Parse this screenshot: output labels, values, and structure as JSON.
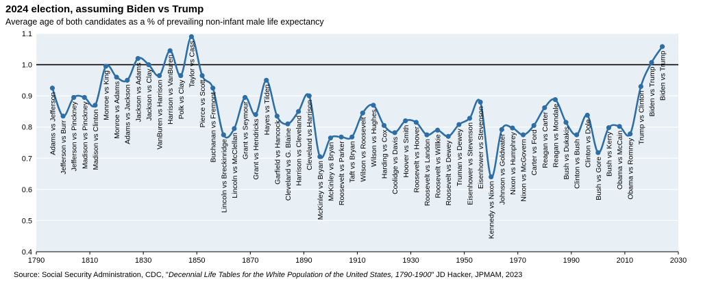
{
  "title": "2024 election, assuming Biden vs Trump",
  "subtitle": "Average age of both candidates as a % of prevailing non-infant male life expectancy",
  "source": {
    "prefix": "Source: Social Security Administration, CDC, \"",
    "italic": "Decennial Life Tables for the White Population of the United States, 1790-1900",
    "suffix": "\" JD Hacker, JPMAM, 2023"
  },
  "colors": {
    "line": "#2e6ea6",
    "marker": "#2e6ea6",
    "plot_bg": "#e8f0f6",
    "gridline": "#ffffff",
    "reference_line": "#000000"
  },
  "chart_data": {
    "type": "line",
    "x_ticks": [
      1790,
      1810,
      1830,
      1850,
      1870,
      1890,
      1910,
      1930,
      1950,
      1970,
      1990,
      2010,
      2030
    ],
    "y_ticks": [
      0.4,
      0.5,
      0.6,
      0.7,
      0.8,
      0.9,
      1.0,
      1.1
    ],
    "y_tick_labels": [
      "0.4",
      "0.5",
      "0.6",
      "0.7",
      "0.8",
      "0.9",
      "1.0",
      "1.1"
    ],
    "xlim": [
      1790,
      2030
    ],
    "ylim": [
      0.4,
      1.1
    ],
    "reference_line": 1.0,
    "grid": true,
    "series": [
      {
        "points": [
          {
            "x": 1796,
            "y": 0.925,
            "label": "Adams vs Jefferson"
          },
          {
            "x": 1800,
            "y": 0.835,
            "label": "Jefferson vs Burr"
          },
          {
            "x": 1804,
            "y": 0.895,
            "label": "Jefferson vs Pinckney"
          },
          {
            "x": 1808,
            "y": 0.895,
            "label": "Madison vs Pinckney"
          },
          {
            "x": 1812,
            "y": 0.87,
            "label": "Madison vs Clinton"
          },
          {
            "x": 1816,
            "y": 0.995,
            "label": "Monroe vs King"
          },
          {
            "x": 1820,
            "y": 0.96,
            "label": "Monroe vs Adams"
          },
          {
            "x": 1824,
            "y": 0.95,
            "label": "Adams vs Jackson"
          },
          {
            "x": 1828,
            "y": 1.02,
            "label": "Jackson vs Adams"
          },
          {
            "x": 1832,
            "y": 1.0,
            "label": "Jackson vs Clay"
          },
          {
            "x": 1836,
            "y": 0.965,
            "label": "VanBuren vs Harrison"
          },
          {
            "x": 1840,
            "y": 1.045,
            "label": "Harrison vs VanBuren"
          },
          {
            "x": 1844,
            "y": 0.965,
            "label": "Polk vs Clay"
          },
          {
            "x": 1848,
            "y": 1.09,
            "label": "Taylor vs Cass"
          },
          {
            "x": 1852,
            "y": 0.965,
            "label": "Pierce vs Scott"
          },
          {
            "x": 1856,
            "y": 0.925,
            "label": "Buchanan vs Fremont"
          },
          {
            "x": 1860,
            "y": 0.775,
            "label": "Lincoln vs Breckinridge"
          },
          {
            "x": 1864,
            "y": 0.795,
            "label": "Lincoln vs McClellan"
          },
          {
            "x": 1868,
            "y": 0.895,
            "label": "Grant vs Seymour"
          },
          {
            "x": 1872,
            "y": 0.84,
            "label": "Grant vs Hendricks"
          },
          {
            "x": 1876,
            "y": 0.95,
            "label": "Hayes vs Tilden"
          },
          {
            "x": 1880,
            "y": 0.835,
            "label": "Garfield vs Hancock"
          },
          {
            "x": 1884,
            "y": 0.81,
            "label": "Cleveland vs G. Blaine"
          },
          {
            "x": 1888,
            "y": 0.85,
            "label": "Harrison vs Cleveland"
          },
          {
            "x": 1892,
            "y": 0.9,
            "label": "Cleveland vs Harrison"
          },
          {
            "x": 1896,
            "y": 0.705,
            "label": "McKinley vs Bryan"
          },
          {
            "x": 1900,
            "y": 0.765,
            "label": "McKinley vs Bryan"
          },
          {
            "x": 1904,
            "y": 0.768,
            "label": "Roosevelt vs Parker"
          },
          {
            "x": 1908,
            "y": 0.768,
            "label": "Taft vs Bryan"
          },
          {
            "x": 1912,
            "y": 0.845,
            "label": "Wilson vs Roosevelt"
          },
          {
            "x": 1916,
            "y": 0.87,
            "label": "Wilson vs Hughes"
          },
          {
            "x": 1920,
            "y": 0.805,
            "label": "Harding vs Cox"
          },
          {
            "x": 1924,
            "y": 0.782,
            "label": "Coolidge vs Davis"
          },
          {
            "x": 1928,
            "y": 0.82,
            "label": "Hoover vs Smith"
          },
          {
            "x": 1932,
            "y": 0.815,
            "label": "Roosevelt vs Hoover"
          },
          {
            "x": 1936,
            "y": 0.775,
            "label": "Roosevelt vs Landon"
          },
          {
            "x": 1940,
            "y": 0.79,
            "label": "Roosevelt vs Willkie"
          },
          {
            "x": 1944,
            "y": 0.77,
            "label": "Roosevelt vs Dewey"
          },
          {
            "x": 1948,
            "y": 0.808,
            "label": "Truman vs Dewey"
          },
          {
            "x": 1952,
            "y": 0.828,
            "label": "Eisenhower vs Stevenson"
          },
          {
            "x": 1956,
            "y": 0.88,
            "label": "Eisenhower vs Stevenson"
          },
          {
            "x": 1960,
            "y": 0.64,
            "label": "Kennedy vs Nixon"
          },
          {
            "x": 1964,
            "y": 0.792,
            "label": "Johnson vs Goldwater"
          },
          {
            "x": 1968,
            "y": 0.797,
            "label": "Nixon vs Humphrey"
          },
          {
            "x": 1972,
            "y": 0.775,
            "label": "Nixon vs McGovern"
          },
          {
            "x": 1976,
            "y": 0.805,
            "label": "Carter vs Ford"
          },
          {
            "x": 1980,
            "y": 0.862,
            "label": "Reagan vs Carter"
          },
          {
            "x": 1984,
            "y": 0.888,
            "label": "Reagan vs Mondale"
          },
          {
            "x": 1988,
            "y": 0.815,
            "label": "Bush vs Dukakis"
          },
          {
            "x": 1992,
            "y": 0.775,
            "label": "Clinton vs Bush"
          },
          {
            "x": 1996,
            "y": 0.838,
            "label": "Clinton vs Dole"
          },
          {
            "x": 2000,
            "y": 0.718,
            "label": "Bush vs Gore"
          },
          {
            "x": 2004,
            "y": 0.798,
            "label": "Bush vs Kerry"
          },
          {
            "x": 2008,
            "y": 0.802,
            "label": "Obama vs McCain"
          },
          {
            "x": 2012,
            "y": 0.778,
            "label": "Obama vs Romney"
          },
          {
            "x": 2016,
            "y": 0.93,
            "label": "Trump vs Clinton"
          },
          {
            "x": 2020,
            "y": 1.007,
            "label": "Biden vs Trump"
          },
          {
            "x": 2024,
            "y": 1.058,
            "label": "Biden vs Trump"
          }
        ]
      }
    ]
  }
}
